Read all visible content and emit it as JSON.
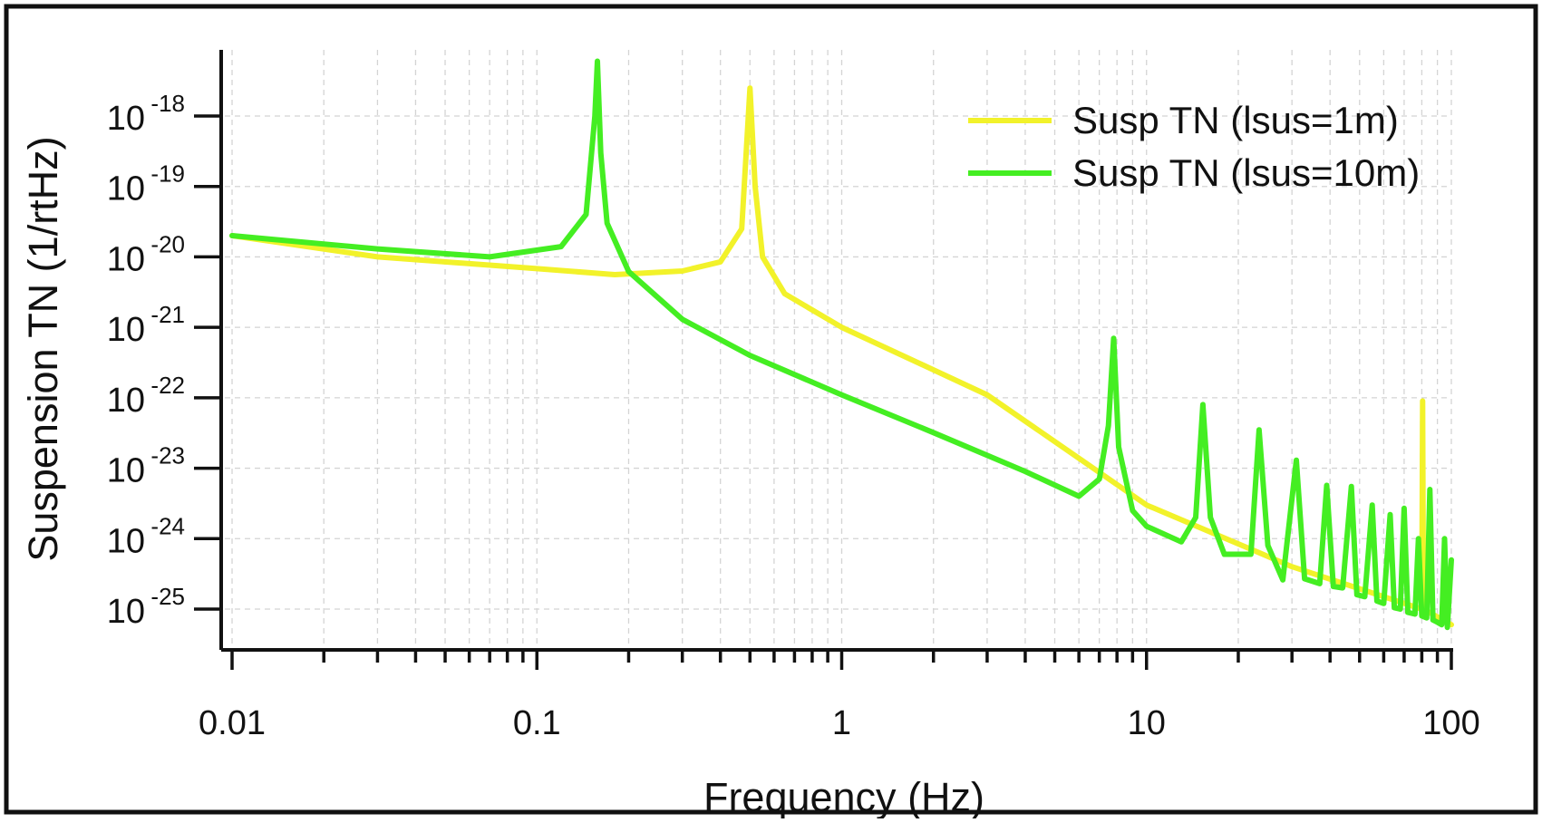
{
  "chart_data": {
    "type": "line",
    "title": "",
    "xlabel": "Frequency (Hz)",
    "ylabel": "Suspension TN (1/rtHz)",
    "x_scale": "log",
    "y_scale": "log",
    "xlim": [
      0.01,
      100
    ],
    "ylim": [
      3e-26,
      8e-18
    ],
    "grid": "on (dashed, light gray)",
    "legend_position": "top-right",
    "x_ticks": [
      {
        "value": 0.01,
        "label": "0.01"
      },
      {
        "value": 0.1,
        "label": "0.1"
      },
      {
        "value": 1,
        "label": "1"
      },
      {
        "value": 10,
        "label": "10"
      },
      {
        "value": 100,
        "label": "100"
      }
    ],
    "y_ticks": [
      {
        "value": 1e-18,
        "base": "10",
        "exp": "-18"
      },
      {
        "value": 1e-19,
        "base": "10",
        "exp": "-19"
      },
      {
        "value": 1e-20,
        "base": "10",
        "exp": "-20"
      },
      {
        "value": 1e-21,
        "base": "10",
        "exp": "-21"
      },
      {
        "value": 1e-22,
        "base": "10",
        "exp": "-22"
      },
      {
        "value": 1e-23,
        "base": "10",
        "exp": "-23"
      },
      {
        "value": 1e-24,
        "base": "10",
        "exp": "-24"
      },
      {
        "value": 1e-25,
        "base": "10",
        "exp": "-25"
      }
    ],
    "series": [
      {
        "name": "Susp TN (lsus=1m)",
        "color": "#f2f22a",
        "x": [
          0.01,
          0.03,
          0.1,
          0.18,
          0.3,
          0.4,
          0.47,
          0.5,
          0.52,
          0.55,
          0.65,
          1,
          3,
          10,
          30,
          80,
          80.5,
          81,
          100
        ],
        "y": [
          2e-20,
          1e-20,
          6.8e-21,
          5.6e-21,
          6.3e-21,
          8.5e-21,
          2.5e-20,
          2.5e-18,
          1e-19,
          1e-20,
          3e-21,
          1e-21,
          1.1e-22,
          3e-24,
          4e-25,
          1e-25,
          9e-23,
          1e-25,
          6e-26
        ]
      },
      {
        "name": "Susp TN (lsus=10m)",
        "color": "#44ee22",
        "x": [
          0.01,
          0.03,
          0.07,
          0.12,
          0.145,
          0.155,
          0.158,
          0.162,
          0.17,
          0.2,
          0.3,
          0.5,
          1,
          2,
          4,
          6,
          7,
          7.5,
          7.8,
          8.1,
          9,
          10,
          13,
          14.5,
          15.3,
          16.2,
          18,
          22,
          23.4,
          25,
          28,
          31,
          33,
          37,
          39,
          41,
          44,
          47,
          49,
          52,
          55,
          57,
          60,
          63,
          65,
          68,
          70,
          72,
          76,
          78,
          80,
          83,
          85,
          87,
          90,
          93,
          95,
          97,
          100
        ],
        "y": [
          2e-20,
          1.3e-20,
          1e-20,
          1.4e-20,
          4e-20,
          1e-18,
          6e-18,
          3e-19,
          3e-20,
          6.2e-21,
          1.3e-21,
          4e-22,
          1.1e-22,
          3.2e-23,
          9e-24,
          4e-24,
          7e-24,
          4e-23,
          7e-22,
          2e-23,
          2.5e-24,
          1.5e-24,
          9e-25,
          2e-24,
          8e-23,
          2e-24,
          6e-25,
          6e-25,
          3.5e-23,
          8e-25,
          2.6e-25,
          1.3e-23,
          2.7e-25,
          2.3e-25,
          5.7e-24,
          2.1e-25,
          2e-25,
          5.5e-24,
          1.6e-25,
          1.5e-25,
          3e-24,
          1.3e-25,
          1.2e-25,
          2.2e-24,
          1.05e-25,
          1e-25,
          2.7e-24,
          9e-26,
          8.5e-26,
          1e-24,
          8e-26,
          7.5e-26,
          5e-24,
          7e-26,
          6.5e-26,
          6e-26,
          1e-24,
          5.5e-26,
          5e-25
        ]
      }
    ]
  }
}
